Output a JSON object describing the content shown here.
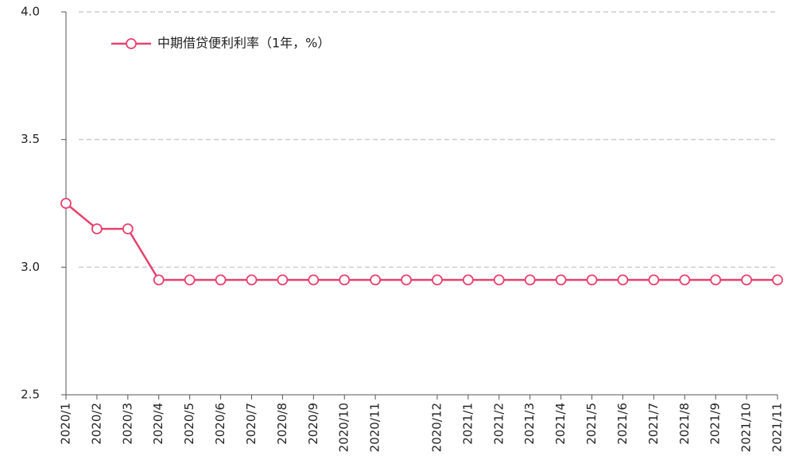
{
  "chart_data": {
    "type": "line",
    "categories": [
      "2020/1",
      "2020/2",
      "2020/3",
      "2020/4",
      "2020/5",
      "2020/6",
      "2020/7",
      "2020/8",
      "2020/9",
      "2020/10",
      "2020/11",
      null,
      "2020/12",
      "2021/1",
      "2021/2",
      "2021/3",
      "2021/4",
      "2021/5",
      "2021/6",
      "2021/7",
      "2021/8",
      "2021/9",
      "2021/10",
      "2021/11"
    ],
    "series": [
      {
        "name": "中期借贷便利利率（1年，%）",
        "color": "#e8416e",
        "values": [
          3.25,
          3.15,
          3.15,
          2.95,
          2.95,
          2.95,
          2.95,
          2.95,
          2.95,
          2.95,
          2.95,
          2.95,
          2.95,
          2.95,
          2.95,
          2.95,
          2.95,
          2.95,
          2.95,
          2.95,
          2.95,
          2.95,
          2.95,
          2.95
        ]
      }
    ],
    "ylim": [
      2.5,
      4.0
    ],
    "yticks": [
      2.5,
      {
        "value": 3,
        "label": "3.0"
      },
      3.5,
      {
        "value": 4,
        "label": "4.0"
      }
    ],
    "grid": true,
    "legend": "top-left"
  }
}
